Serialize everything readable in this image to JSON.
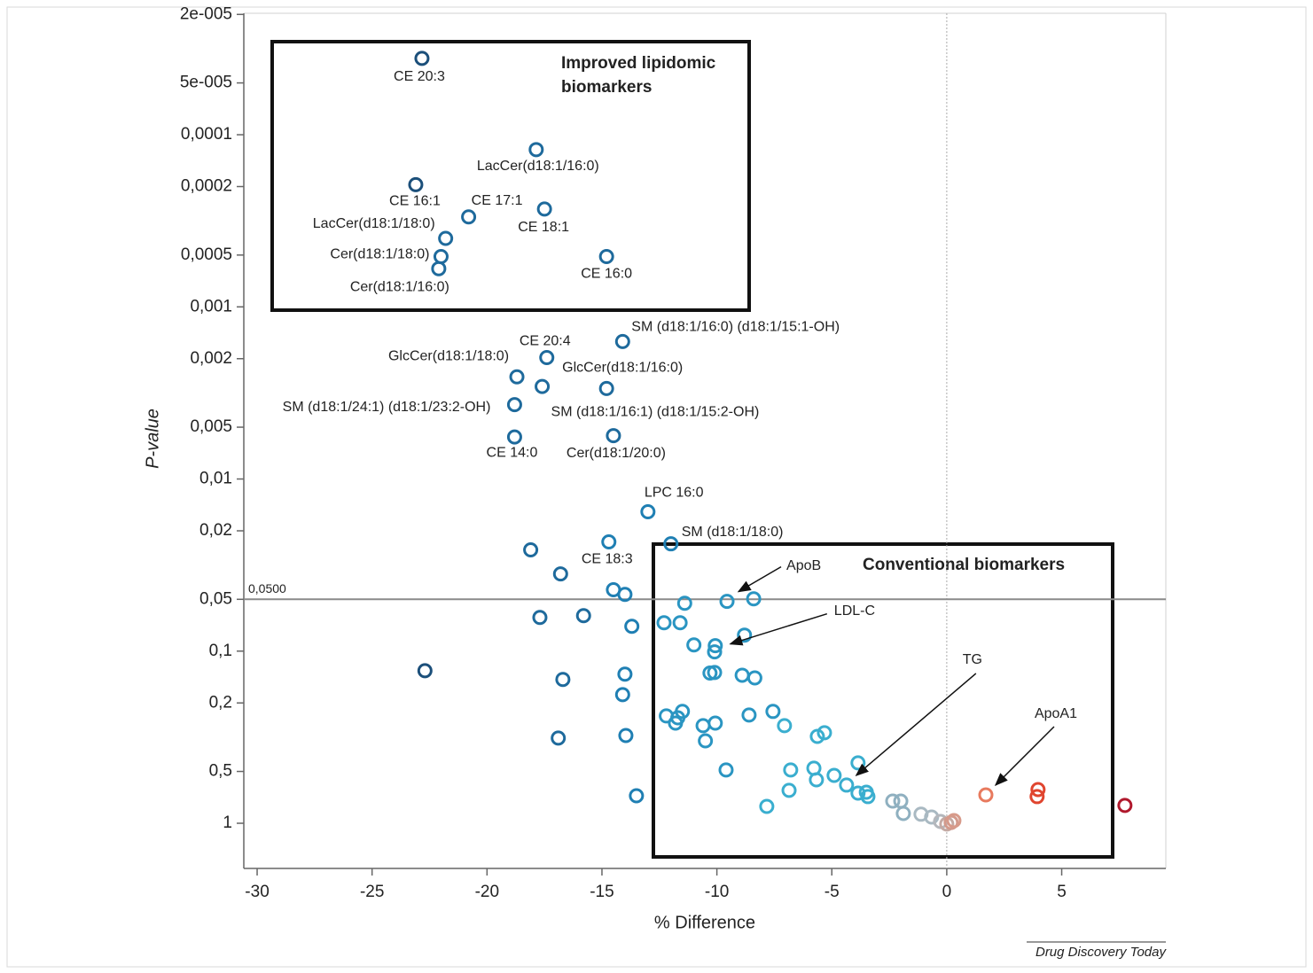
{
  "chart_data": {
    "type": "scatter",
    "x_label": "% Difference",
    "y_label": "P-value",
    "source": "Drug Discovery Today",
    "xlim": [
      -30.58,
      9.53
    ],
    "xticks": [
      -30,
      -25,
      -20,
      -15,
      -10,
      -5,
      0,
      5
    ],
    "ylim": [
      1.83,
      1.97e-05
    ],
    "log_y": true,
    "y_reversed": true,
    "yticks": [
      {
        "value": 2e-05,
        "label": "2e-005"
      },
      {
        "value": 5e-05,
        "label": "5e-005"
      },
      {
        "value": 0.0001,
        "label": "0,0001"
      },
      {
        "value": 0.0002,
        "label": "0,0002"
      },
      {
        "value": 0.0005,
        "label": "0,0005"
      },
      {
        "value": 0.001,
        "label": "0,001"
      },
      {
        "value": 0.002,
        "label": "0,002"
      },
      {
        "value": 0.005,
        "label": "0,005"
      },
      {
        "value": 0.01,
        "label": "0,01"
      },
      {
        "value": 0.02,
        "label": "0,02"
      },
      {
        "value": 0.05,
        "label": "0,05"
      },
      {
        "value": 0.1,
        "label": "0,1"
      },
      {
        "value": 0.2,
        "label": "0,2"
      },
      {
        "value": 0.5,
        "label": "0,5"
      },
      1
    ],
    "hline": {
      "value": 0.05,
      "label": "0,0500",
      "color": "#8a8a8a"
    },
    "vline": {
      "value": 0,
      "color": "#aaaaaa"
    },
    "annotations": [
      {
        "lines": [
          "Improved lipidomic",
          "biomarkers"
        ]
      },
      {
        "lines": [
          "Conventional biomarkers"
        ]
      }
    ],
    "x": [
      -22.83,
      -17.86,
      -23.1,
      -17.5,
      -20.8,
      -21.8,
      -14.8,
      -22.0,
      -22.1,
      -14.1,
      -17.4,
      -18.7,
      -17.6,
      -14.8,
      -18.8,
      -18.8,
      -14.5,
      -13.0,
      -14.7,
      -12.0,
      -18.1,
      -16.8,
      -14.5,
      -14.0,
      -9.56,
      -8.4,
      -11.4,
      -17.7,
      -15.8,
      -12.3,
      -11.6,
      -13.7,
      -8.8,
      -11.0,
      -10.07,
      -10.1,
      -22.7,
      -10.3,
      -10.1,
      -14.0,
      -8.9,
      -8.35,
      -16.7,
      -14.1,
      -7.56,
      -12.2,
      -11.5,
      -8.6,
      -11.7,
      -11.8,
      -10.07,
      -10.6,
      -7.06,
      -5.32,
      -5.63,
      -16.9,
      -13.96,
      -10.5,
      -9.6,
      -6.79,
      -5.78,
      -3.86,
      -4.9,
      -5.67,
      -4.36,
      -6.86,
      -3.86,
      -3.5,
      -3.43,
      -13.5,
      -7.83,
      -2.35,
      -2.0,
      -1.89,
      -1.12,
      -0.66,
      -0.27,
      0,
      0.19,
      0.31,
      1.7,
      3.97,
      3.93,
      7.75
    ],
    "series": [
      {
        "values": [
          3.6e-05,
          0.000122,
          0.000195,
          0.00027,
          0.0003,
          0.0004,
          0.00051,
          0.00051,
          0.0006,
          0.00159,
          0.00197,
          0.00255,
          0.0029,
          0.00298,
          0.0037,
          0.0057,
          0.0056,
          0.0155,
          0.0232,
          0.0238,
          0.0258,
          0.0356,
          0.044,
          0.0468,
          0.0514,
          0.0497,
          0.0527,
          0.0637,
          0.0622,
          0.0684,
          0.0684,
          0.0717,
          0.0807,
          0.092,
          0.093,
          0.101,
          0.13,
          0.134,
          0.133,
          0.136,
          0.138,
          0.143,
          0.146,
          0.179,
          0.224,
          0.238,
          0.224,
          0.235,
          0.244,
          0.262,
          0.262,
          0.271,
          0.271,
          0.298,
          0.313,
          0.32,
          0.309,
          0.332,
          0.49,
          0.49,
          0.479,
          0.446,
          0.527,
          0.559,
          0.6,
          0.644,
          0.668,
          0.66,
          0.7,
          0.692,
          0.798,
          0.743,
          0.743,
          0.877,
          0.886,
          0.92,
          0.976,
          1.01,
          0.99,
          0.965,
          0.684,
          0.637,
          0.7,
          0.788
        ],
        "labels": [
          "CE 20:3",
          "LacCer(d18:1/16:0)",
          "CE 16:1",
          "CE 18:1",
          "CE 17:1",
          "LacCer(d18:1/18:0)",
          "CE 16:0",
          "Cer(d18:1/18:0)",
          "Cer(d18:1/16:0)",
          "SM (d18:1/16:0) (d18:1/15:1-OH)",
          "CE 20:4",
          "GlcCer(d18:1/18:0)",
          "SM (d18:1/16:1) (d18:1/15:2-OH)",
          "GlcCer(d18:1/16:0)",
          "SM (d18:1/24:1) (d18:1/23:2-OH)",
          "CE 14:0",
          "Cer(d18:1/20:0)",
          "LPC 16:0",
          "CE 18:3",
          "SM (d18:1/18:0)",
          null,
          null,
          null,
          null,
          "ApoB",
          null,
          null,
          null,
          null,
          null,
          null,
          null,
          null,
          null,
          "LDL-C",
          null,
          null,
          null,
          null,
          null,
          null,
          null,
          null,
          null,
          null,
          null,
          null,
          null,
          null,
          null,
          null,
          null,
          null,
          null,
          null,
          null,
          null,
          null,
          null,
          null,
          null,
          null,
          null,
          null,
          null,
          null,
          "TG",
          null,
          null,
          null,
          null,
          null,
          null,
          null,
          null,
          null,
          null,
          null,
          null,
          null,
          "ApoA1",
          null,
          null,
          null
        ],
        "colors": [
          "#1b4f7a",
          "#1e6a9c",
          "#1b4f7a",
          "#1e6a9c",
          "#1e6a9c",
          "#1e6a9c",
          "#1e6a9c",
          "#1e6a9c",
          "#1e6a9c",
          "#1e6a9c",
          "#1e6a9c",
          "#1e6a9c",
          "#1e6a9c",
          "#1e6a9c",
          "#1e6a9c",
          "#1e6a9c",
          "#1e6a9c",
          "#1f7fb3",
          "#1f7fb3",
          "#1f7fb3",
          "#1e6a9c",
          "#1e6a9c",
          "#1f7fb3",
          "#1f7fb3",
          "#2a95c2",
          "#2a95c2",
          "#2a95c2",
          "#1e6a9c",
          "#1e6a9c",
          "#2a95c2",
          "#2a95c2",
          "#1f7fb3",
          "#2a95c2",
          "#2a95c2",
          "#2a95c2",
          "#2a95c2",
          "#1b4f7a",
          "#2a95c2",
          "#2a95c2",
          "#1f7fb3",
          "#2a95c2",
          "#2a95c2",
          "#1e6a9c",
          "#1f7fb3",
          "#2a95c2",
          "#2a95c2",
          "#2a95c2",
          "#2a95c2",
          "#2a95c2",
          "#2a95c2",
          "#2a95c2",
          "#2a95c2",
          "#3aaecf",
          "#3aaecf",
          "#3aaecf",
          "#1e6a9c",
          "#1f7fb3",
          "#2a95c2",
          "#2a95c2",
          "#3aaecf",
          "#3aaecf",
          "#3aaecf",
          "#3aaecf",
          "#3aaecf",
          "#3aaecf",
          "#3aaecf",
          "#3aaecf",
          "#3aaecf",
          "#3aaecf",
          "#1f7fb3",
          "#3aaecf",
          "#8fb0c0",
          "#8fb0c0",
          "#8fb0c0",
          "#a9b9c2",
          "#a9b9c2",
          "#b4b7bc",
          "#c4aaa4",
          "#d39a8c",
          "#d79a8a",
          "#e87a5e",
          "#e0452f",
          "#e0452f",
          "#b0182c"
        ]
      }
    ]
  }
}
